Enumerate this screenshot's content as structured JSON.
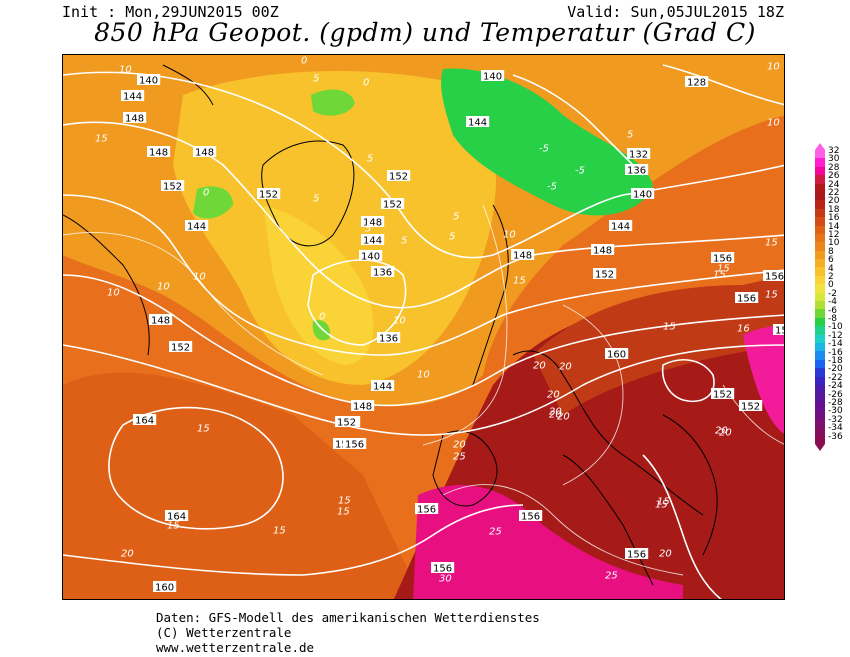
{
  "header": {
    "init": "Init : Mon,29JUN2015 00Z",
    "valid": "Valid: Sun,05JUL2015 18Z",
    "title": "850 hPa Geopot. (gpdm) und Temperatur (Grad C)"
  },
  "legend": {
    "labels": [
      "32",
      "30",
      "28",
      "26",
      "24",
      "22",
      "20",
      "18",
      "16",
      "14",
      "12",
      "10",
      "8",
      "6",
      "4",
      "2",
      "0",
      "-2",
      "-4",
      "-6",
      "-8",
      "-10",
      "-12",
      "-14",
      "-16",
      "-18",
      "-20",
      "-22",
      "-24",
      "-26",
      "-28",
      "-30",
      "-32",
      "-34",
      "-36"
    ],
    "colors": [
      "#ff5ee6",
      "#ff1fcf",
      "#f2089a",
      "#d01a40",
      "#b01818",
      "#a81a1a",
      "#b82518",
      "#c53a16",
      "#d24e16",
      "#de6216",
      "#e6751a",
      "#ec861c",
      "#f09a20",
      "#f5ae25",
      "#f8c22c",
      "#fad336",
      "#f2e240",
      "#d6e83a",
      "#aee036",
      "#6fd838",
      "#28d048",
      "#1fd28c",
      "#1cd2c8",
      "#1cb6e6",
      "#1a8ef0",
      "#1a62f0",
      "#2a3ad8",
      "#3a24c0",
      "#4a1aa8",
      "#58169a",
      "#661090",
      "#701080",
      "#7a1070",
      "#820e60",
      "#8a0c52"
    ]
  },
  "contour_labels": [
    {
      "t": "10"
    },
    {
      "t": "140"
    },
    {
      "t": "144"
    },
    {
      "t": "148"
    },
    {
      "t": "15"
    },
    {
      "t": "148"
    },
    {
      "t": "152"
    },
    {
      "t": "144"
    },
    {
      "t": "10"
    },
    {
      "t": "10"
    },
    {
      "t": "148"
    },
    {
      "t": "152"
    },
    {
      "t": "15"
    },
    {
      "t": "164"
    },
    {
      "t": "15"
    },
    {
      "t": "164"
    },
    {
      "t": "20"
    },
    {
      "t": "160"
    },
    {
      "t": "15"
    },
    {
      "t": "152"
    },
    {
      "t": "156"
    },
    {
      "t": "15"
    },
    {
      "t": "15"
    },
    {
      "t": "156"
    },
    {
      "t": "156"
    },
    {
      "t": "30"
    },
    {
      "t": "25"
    },
    {
      "t": "156"
    },
    {
      "t": "20"
    },
    {
      "t": "25"
    },
    {
      "t": "20"
    },
    {
      "t": "20"
    },
    {
      "t": "20"
    },
    {
      "t": "20"
    },
    {
      "t": "20"
    },
    {
      "t": "160"
    },
    {
      "t": "20"
    },
    {
      "t": "20"
    },
    {
      "t": "15"
    },
    {
      "t": "156"
    },
    {
      "t": "20"
    },
    {
      "t": "25"
    },
    {
      "t": "152"
    },
    {
      "t": "152"
    },
    {
      "t": "20"
    },
    {
      "t": "15"
    },
    {
      "t": "156"
    },
    {
      "t": "15"
    },
    {
      "t": "16"
    },
    {
      "t": "152"
    },
    {
      "t": "15"
    },
    {
      "t": "156"
    },
    {
      "t": "156"
    },
    {
      "t": "15"
    },
    {
      "t": "15"
    },
    {
      "t": "15"
    },
    {
      "t": "152"
    },
    {
      "t": "148"
    },
    {
      "t": "15"
    },
    {
      "t": "148"
    },
    {
      "t": "10"
    },
    {
      "t": "140"
    },
    {
      "t": "144"
    },
    {
      "t": "-5"
    },
    {
      "t": "-5"
    },
    {
      "t": "-5"
    },
    {
      "t": "5"
    },
    {
      "t": "132"
    },
    {
      "t": "136"
    },
    {
      "t": "140"
    },
    {
      "t": "144"
    },
    {
      "t": "128"
    },
    {
      "t": "10"
    },
    {
      "t": "10"
    },
    {
      "t": "148"
    },
    {
      "t": "152"
    },
    {
      "t": "5"
    },
    {
      "t": "5"
    },
    {
      "t": "152"
    },
    {
      "t": "152"
    },
    {
      "t": "148"
    },
    {
      "t": "144"
    },
    {
      "t": "140"
    },
    {
      "t": "136"
    },
    {
      "t": "5"
    },
    {
      "t": "0"
    },
    {
      "t": "136"
    },
    {
      "t": "10"
    },
    {
      "t": "144"
    },
    {
      "t": "148"
    },
    {
      "t": "152"
    },
    {
      "t": "156"
    },
    {
      "t": "10"
    },
    {
      "t": "5"
    },
    {
      "t": "0"
    },
    {
      "t": "0"
    },
    {
      "t": "10"
    },
    {
      "t": "5"
    },
    {
      "t": "5"
    },
    {
      "t": "0"
    },
    {
      "t": "5"
    }
  ],
  "credits": [
    "Daten: GFS-Modell des amerikanischen Wetterdienstes",
    "(C) Wetterzentrale",
    "www.wetterzentrale.de"
  ]
}
